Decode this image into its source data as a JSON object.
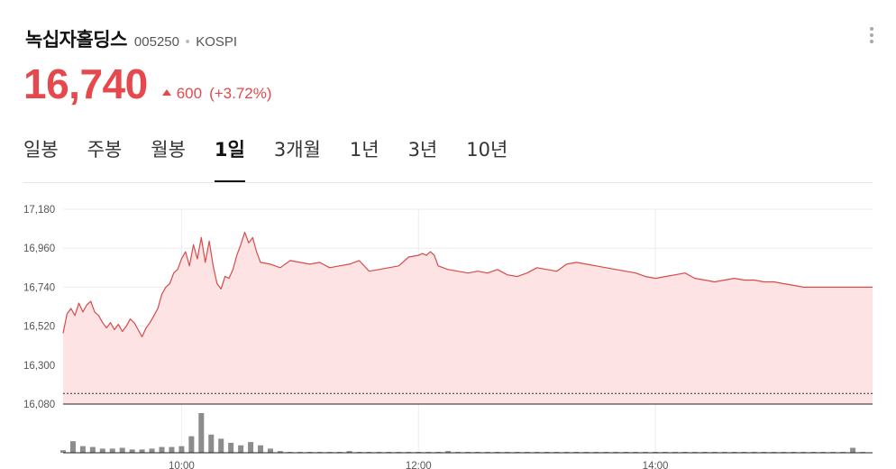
{
  "stock": {
    "name": "녹십자홀딩스",
    "code": "005250",
    "separator": "•",
    "market": "KOSPI",
    "price": "16,740",
    "change": "600",
    "change_pct": "(+3.72%)"
  },
  "colors": {
    "up": "#e5484d",
    "fill": "#fde3e3",
    "line": "#d94a4a",
    "bar": "#8c8c8c"
  },
  "tabs": [
    {
      "label": "일봉",
      "active": false
    },
    {
      "label": "주봉",
      "active": false
    },
    {
      "label": "월봉",
      "active": false
    },
    {
      "label": "1일",
      "active": true
    },
    {
      "label": "3개월",
      "active": false
    },
    {
      "label": "1년",
      "active": false
    },
    {
      "label": "3년",
      "active": false
    },
    {
      "label": "10년",
      "active": false
    }
  ],
  "chart_data": {
    "type": "area",
    "y_ticks": [
      "17,180",
      "16,960",
      "16,740",
      "16,520",
      "16,300",
      "16,080"
    ],
    "y_tick_values": [
      17180,
      16960,
      16740,
      16520,
      16300,
      16080
    ],
    "ylim": [
      16080,
      17180
    ],
    "x_ticks": [
      "10:00",
      "12:00",
      "14:00"
    ],
    "x_tick_minutes": [
      600,
      720,
      840
    ],
    "xlim": [
      540,
      950
    ],
    "reference_price": 16140,
    "price": {
      "t": [
        540,
        542,
        544,
        546,
        548,
        550,
        552,
        554,
        556,
        558,
        560,
        562,
        564,
        566,
        568,
        570,
        572,
        574,
        576,
        578,
        580,
        582,
        584,
        586,
        588,
        590,
        592,
        594,
        596,
        598,
        600,
        602,
        604,
        606,
        608,
        610,
        612,
        614,
        616,
        618,
        620,
        622,
        624,
        626,
        628,
        630,
        632,
        634,
        636,
        638,
        640,
        645,
        650,
        655,
        660,
        665,
        670,
        675,
        680,
        685,
        690,
        695,
        700,
        705,
        710,
        715,
        720,
        722,
        724,
        726,
        728,
        730,
        735,
        740,
        745,
        750,
        755,
        760,
        765,
        770,
        775,
        780,
        785,
        790,
        795,
        800,
        805,
        810,
        815,
        820,
        825,
        830,
        835,
        840,
        845,
        850,
        855,
        860,
        865,
        870,
        875,
        880,
        885,
        890,
        895,
        900,
        905,
        910,
        915,
        920,
        925,
        930,
        935,
        940,
        945,
        950
      ],
      "v": [
        16480,
        16590,
        16620,
        16580,
        16650,
        16600,
        16640,
        16660,
        16600,
        16580,
        16540,
        16510,
        16540,
        16500,
        16530,
        16490,
        16520,
        16560,
        16540,
        16500,
        16460,
        16510,
        16540,
        16580,
        16620,
        16700,
        16740,
        16760,
        16820,
        16840,
        16900,
        16940,
        16860,
        16980,
        16900,
        17020,
        16880,
        17000,
        16860,
        16760,
        16730,
        16800,
        16790,
        16840,
        16920,
        16980,
        17050,
        16990,
        17020,
        16940,
        16880,
        16870,
        16850,
        16890,
        16880,
        16870,
        16880,
        16850,
        16860,
        16870,
        16890,
        16830,
        16840,
        16850,
        16860,
        16910,
        16920,
        16930,
        16920,
        16940,
        16920,
        16860,
        16840,
        16830,
        16820,
        16830,
        16820,
        16840,
        16810,
        16800,
        16820,
        16850,
        16840,
        16830,
        16870,
        16880,
        16870,
        16860,
        16850,
        16840,
        16830,
        16820,
        16800,
        16790,
        16800,
        16810,
        16820,
        16790,
        16780,
        16770,
        16780,
        16790,
        16780,
        16780,
        16770,
        16770,
        16760,
        16750,
        16740,
        16740,
        16740,
        16740,
        16740,
        16740,
        16740,
        16740
      ]
    },
    "volume": {
      "t": [
        540,
        545,
        550,
        555,
        560,
        565,
        570,
        575,
        580,
        585,
        590,
        595,
        600,
        605,
        610,
        615,
        620,
        625,
        630,
        635,
        640,
        645,
        650,
        655,
        660,
        665,
        670,
        675,
        680,
        685,
        690,
        695,
        700,
        705,
        710,
        715,
        720,
        725,
        730,
        735,
        740,
        745,
        750,
        755,
        760,
        765,
        770,
        775,
        780,
        785,
        790,
        795,
        800,
        805,
        810,
        815,
        820,
        825,
        830,
        835,
        840,
        845,
        850,
        855,
        860,
        865,
        870,
        875,
        880,
        885,
        890,
        895,
        900,
        905,
        910,
        915,
        920,
        925,
        930,
        935,
        940,
        945
      ],
      "v": [
        3,
        14,
        8,
        7,
        5,
        5,
        6,
        4,
        4,
        5,
        7,
        7,
        8,
        20,
        48,
        22,
        17,
        12,
        9,
        13,
        9,
        5,
        2,
        1,
        1,
        1,
        1,
        1,
        1,
        2,
        1,
        1,
        1,
        1,
        1,
        1,
        1,
        1,
        1,
        2,
        1,
        1,
        1,
        1,
        1,
        1,
        1,
        1,
        1,
        1,
        1,
        1,
        1,
        1,
        1,
        1,
        1,
        1,
        1,
        1,
        1,
        1,
        1,
        1,
        1,
        1,
        1,
        1,
        1,
        1,
        1,
        1,
        1,
        1,
        1,
        1,
        1,
        1,
        1,
        1,
        6,
        1
      ]
    }
  }
}
